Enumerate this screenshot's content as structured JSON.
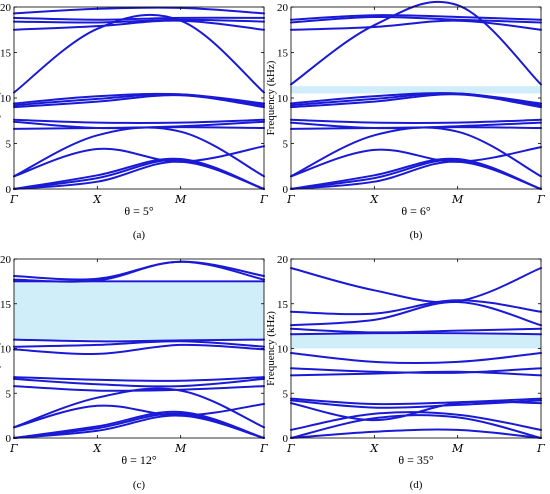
{
  "figure": {
    "panels": [
      {
        "label": "(a)",
        "theta_label": "θ = 5°",
        "ylabel": "Frequency (kHz)",
        "ylim": [
          0,
          20
        ],
        "yticks": [
          0,
          5,
          10,
          15,
          20
        ],
        "xticks": [
          "Γ",
          "X",
          "M",
          "Γ"
        ],
        "bandgaps": []
      },
      {
        "label": "(b)",
        "theta_label": "θ = 6°",
        "ylabel": "Frequency (kHz)",
        "ylim": [
          0,
          20
        ],
        "yticks": [
          0,
          5,
          10,
          15,
          20
        ],
        "xticks": [
          "Γ",
          "X",
          "M",
          "Γ"
        ],
        "bandgaps": [
          [
            10.5,
            11.3
          ]
        ]
      },
      {
        "label": "(c)",
        "theta_label": "θ = 12°",
        "ylabel": "Frequency (kHz)",
        "ylim": [
          0,
          20
        ],
        "yticks": [
          0,
          5,
          10,
          15,
          20
        ],
        "xticks": [
          "Γ",
          "X",
          "M",
          "Γ"
        ],
        "bandgaps": [
          [
            11.0,
            17.3
          ]
        ]
      },
      {
        "label": "(d)",
        "theta_label": "θ = 35°",
        "ylabel": "Frequency (kHz)",
        "ylim": [
          0,
          20
        ],
        "yticks": [
          0,
          5,
          10,
          15,
          20
        ],
        "xticks": [
          "Γ",
          "X",
          "M",
          "Γ"
        ],
        "bandgaps": [
          [
            10.0,
            11.5
          ]
        ]
      }
    ]
  },
  "chart_data": [
    {
      "type": "line",
      "panel": "(a)",
      "x_points": [
        "Γ",
        "X",
        "M",
        "Γ"
      ],
      "ylabel": "Frequency (kHz)",
      "ylim": [
        0,
        20
      ],
      "series": [
        {
          "values": [
            0,
            0.8,
            3.0,
            0
          ]
        },
        {
          "values": [
            0,
            1.2,
            3.2,
            0
          ]
        },
        {
          "values": [
            0,
            1.5,
            3.3,
            0
          ]
        },
        {
          "values": [
            1.4,
            4.4,
            3.0,
            4.7
          ]
        },
        {
          "values": [
            1.4,
            5.9,
            6.3,
            1.4
          ]
        },
        {
          "values": [
            6.6,
            6.7,
            6.8,
            6.7
          ]
        },
        {
          "values": [
            7.4,
            6.7,
            6.9,
            7.4
          ]
        },
        {
          "values": [
            7.6,
            7.3,
            7.3,
            7.6
          ]
        },
        {
          "values": [
            9.0,
            9.6,
            10.3,
            9.0
          ]
        },
        {
          "values": [
            9.2,
            9.9,
            10.4,
            9.2
          ]
        },
        {
          "values": [
            9.4,
            10.2,
            10.4,
            9.4
          ]
        },
        {
          "values": [
            10.6,
            17.6,
            18.5,
            10.6
          ]
        },
        {
          "values": [
            17.5,
            17.9,
            18.5,
            17.5
          ]
        },
        {
          "values": [
            18.4,
            18.3,
            18.6,
            18.4
          ]
        },
        {
          "values": [
            18.8,
            18.6,
            18.8,
            18.8
          ]
        },
        {
          "values": [
            19.3,
            19.8,
            19.9,
            19.3
          ]
        }
      ]
    },
    {
      "type": "line",
      "panel": "(b)",
      "x_points": [
        "Γ",
        "X",
        "M",
        "Γ"
      ],
      "ylabel": "Frequency (kHz)",
      "ylim": [
        0,
        20
      ],
      "bandgaps": [
        [
          10.5,
          11.3
        ]
      ],
      "series": [
        {
          "values": [
            0,
            0.8,
            3.0,
            0
          ]
        },
        {
          "values": [
            0,
            1.2,
            3.2,
            0
          ]
        },
        {
          "values": [
            0,
            1.5,
            3.3,
            0
          ]
        },
        {
          "values": [
            1.4,
            4.3,
            3.0,
            4.6
          ]
        },
        {
          "values": [
            1.4,
            5.9,
            6.3,
            1.4
          ]
        },
        {
          "values": [
            6.6,
            6.7,
            6.8,
            6.7
          ]
        },
        {
          "values": [
            7.3,
            6.7,
            6.9,
            7.3
          ]
        },
        {
          "values": [
            7.6,
            7.3,
            7.3,
            7.6
          ]
        },
        {
          "values": [
            9.0,
            9.6,
            10.4,
            9.0
          ]
        },
        {
          "values": [
            9.2,
            9.9,
            10.5,
            9.2
          ]
        },
        {
          "values": [
            9.4,
            10.2,
            10.5,
            9.4
          ]
        },
        {
          "values": [
            11.5,
            18.0,
            20.2,
            11.5
          ]
        },
        {
          "values": [
            17.5,
            17.8,
            18.5,
            17.5
          ]
        },
        {
          "values": [
            18.3,
            18.9,
            18.6,
            18.3
          ]
        },
        {
          "values": [
            18.6,
            19.1,
            18.9,
            18.6
          ]
        }
      ]
    },
    {
      "type": "line",
      "panel": "(c)",
      "x_points": [
        "Γ",
        "X",
        "M",
        "Γ"
      ],
      "ylabel": "Frequency (kHz)",
      "ylim": [
        0,
        20
      ],
      "bandgaps": [
        [
          11.0,
          17.3
        ]
      ],
      "series": [
        {
          "values": [
            0,
            0.8,
            2.5,
            0
          ]
        },
        {
          "values": [
            0,
            1.1,
            2.7,
            0
          ]
        },
        {
          "values": [
            0,
            1.3,
            2.9,
            0
          ]
        },
        {
          "values": [
            1.2,
            3.6,
            2.5,
            3.8
          ]
        },
        {
          "values": [
            1.2,
            4.5,
            5.3,
            1.2
          ]
        },
        {
          "values": [
            5.8,
            5.3,
            5.4,
            5.8
          ]
        },
        {
          "values": [
            6.6,
            6.0,
            5.8,
            6.6
          ]
        },
        {
          "values": [
            6.8,
            6.5,
            6.4,
            6.8
          ]
        },
        {
          "values": [
            9.9,
            9.4,
            10.4,
            9.9
          ]
        },
        {
          "values": [
            10.2,
            10.4,
            10.8,
            10.2
          ]
        },
        {
          "values": [
            11.0,
            10.8,
            10.9,
            11.0
          ]
        },
        {
          "values": [
            17.5,
            17.5,
            17.5,
            17.5
          ]
        },
        {
          "values": [
            17.7,
            17.6,
            19.7,
            17.7
          ]
        },
        {
          "values": [
            18.1,
            17.8,
            19.7,
            18.1
          ]
        }
      ]
    },
    {
      "type": "line",
      "panel": "(d)",
      "x_points": [
        "Γ",
        "X",
        "M",
        "Γ"
      ],
      "ylabel": "Frequency (kHz)",
      "ylim": [
        0,
        20
      ],
      "bandgaps": [
        [
          10.0,
          11.5
        ]
      ],
      "series": [
        {
          "values": [
            0,
            0.7,
            0.9,
            0
          ]
        },
        {
          "values": [
            0,
            2.2,
            2.3,
            0
          ]
        },
        {
          "values": [
            0.9,
            2.7,
            2.6,
            0.9
          ]
        },
        {
          "values": [
            3.9,
            2.0,
            3.9,
            3.9
          ]
        },
        {
          "values": [
            4.2,
            3.4,
            3.7,
            4.2
          ]
        },
        {
          "values": [
            4.4,
            3.8,
            4.0,
            4.4
          ]
        },
        {
          "values": [
            7.0,
            7.2,
            7.4,
            7.0
          ]
        },
        {
          "values": [
            7.8,
            7.4,
            7.3,
            7.8
          ]
        },
        {
          "values": [
            9.5,
            8.5,
            8.5,
            9.5
          ]
        },
        {
          "values": [
            11.6,
            11.7,
            11.7,
            11.6
          ]
        },
        {
          "values": [
            12.2,
            11.8,
            12.0,
            12.2
          ]
        },
        {
          "values": [
            12.6,
            13.2,
            15.2,
            12.6
          ]
        },
        {
          "values": [
            14.1,
            13.9,
            15.4,
            14.1
          ]
        },
        {
          "values": [
            19.0,
            16.5,
            15.3,
            19.0
          ]
        }
      ]
    }
  ]
}
